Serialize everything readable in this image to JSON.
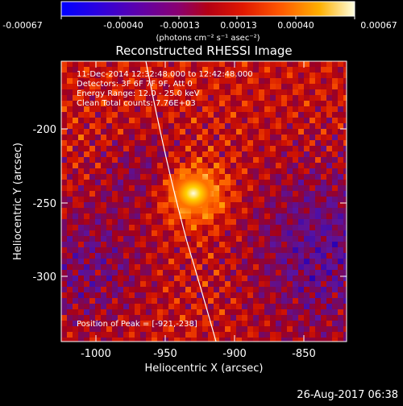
{
  "colorbar": {
    "tick_labels": [
      "-0.00067",
      "-0.00040",
      "-0.00013",
      "0.00013",
      "0.00040",
      "0.00067"
    ],
    "units": "(photons cm⁻² s⁻¹ asec⁻²)"
  },
  "plot": {
    "title": "Reconstructed RHESSI Image",
    "info_lines": [
      "11-Dec-2014 12:32:48.000 to 12:42:48.000",
      "Detectors: 3F 6F 7F 9F, Att 0",
      "Energy Range: 12.0 - 25.0 keV",
      "Clean     Total counts: 7.76E+03"
    ],
    "peak_label": "Position of Peak = [-921,-238]",
    "xlabel": "Heliocentric X (arcsec)",
    "ylabel": "Heliocentric Y (arcsec)",
    "x_ticks": [
      "-1000",
      "-950",
      "-900",
      "-850"
    ],
    "y_ticks": [
      "-200",
      "-250",
      "-300"
    ],
    "limb_color": "#ffffff",
    "peak_color": "#ffffe6"
  },
  "footer": {
    "timestamp": "26-Aug-2017 06:38"
  },
  "chart_data": {
    "type": "heatmap",
    "title": "Reconstructed RHESSI Image",
    "xlabel": "Heliocentric X (arcsec)",
    "ylabel": "Heliocentric Y (arcsec)",
    "xlim": [
      -1020,
      -822
    ],
    "ylim": [
      -352,
      -170
    ],
    "colorbar_range": [
      -0.00067,
      0.00067
    ],
    "peak": {
      "x": -921,
      "y": -238
    }
  }
}
